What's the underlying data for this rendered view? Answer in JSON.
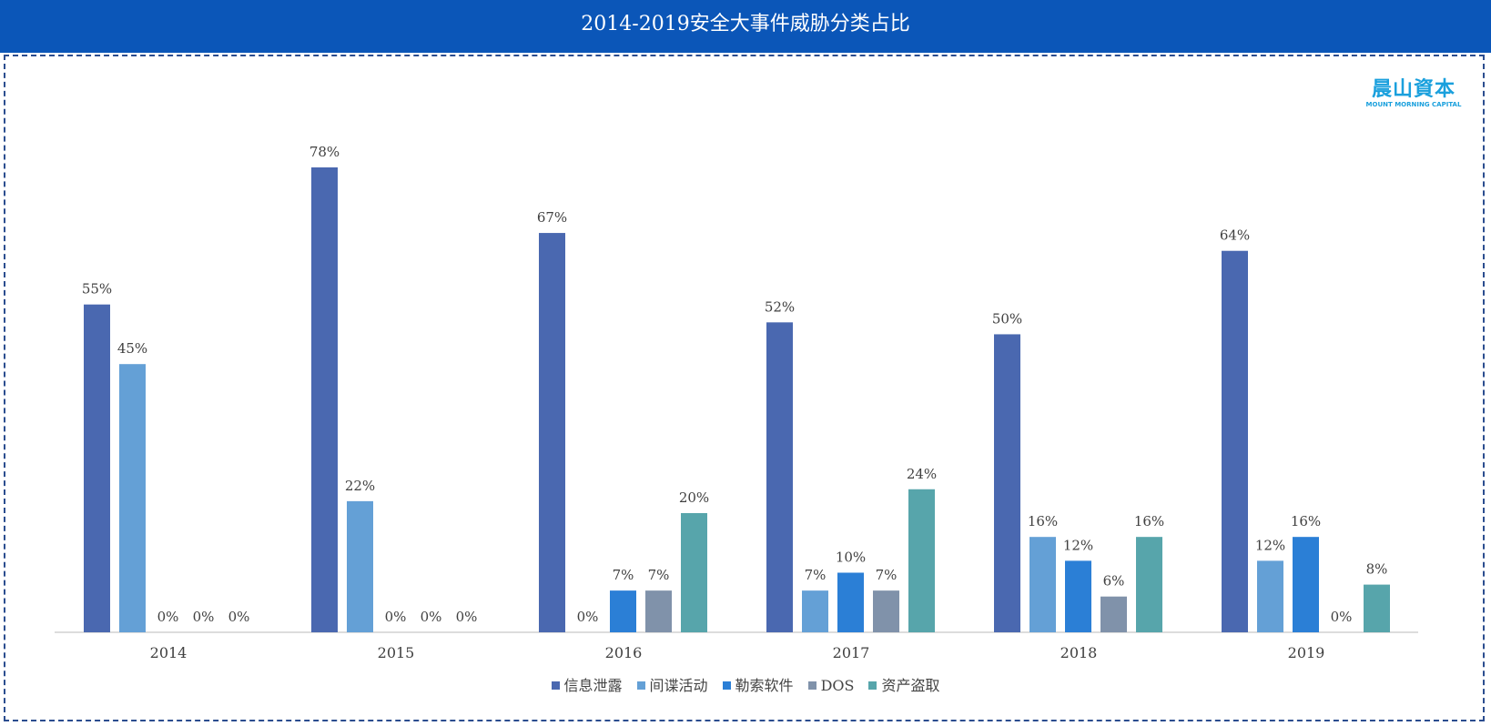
{
  "header": {
    "title": "2014-2019安全大事件威胁分类占比"
  },
  "logo": {
    "cn": "晨山資本",
    "en": "MOUNT MORNING CAPITAL"
  },
  "colors": {
    "header_bg": "#0b56b8",
    "series": [
      "#4a68b0",
      "#64a0d6",
      "#2b7fd6",
      "#8092aa",
      "#57a5ab"
    ]
  },
  "chart_data": {
    "type": "bar",
    "title": "2014-2019安全大事件威胁分类占比",
    "categories": [
      "2014",
      "2015",
      "2016",
      "2017",
      "2018",
      "2019"
    ],
    "series": [
      {
        "name": "信息泄露",
        "values": [
          55,
          78,
          67,
          52,
          50,
          64
        ]
      },
      {
        "name": "间谍活动",
        "values": [
          45,
          22,
          0,
          7,
          16,
          12
        ]
      },
      {
        "name": "勒索软件",
        "values": [
          0,
          0,
          7,
          10,
          12,
          16
        ]
      },
      {
        "name": "DOS",
        "values": [
          0,
          0,
          7,
          7,
          6,
          0
        ]
      },
      {
        "name": "资产盗取",
        "values": [
          0,
          0,
          20,
          24,
          16,
          8
        ]
      }
    ],
    "value_suffix": "%",
    "ylim": [
      0,
      80
    ],
    "grid": false,
    "legend_position": "bottom"
  }
}
